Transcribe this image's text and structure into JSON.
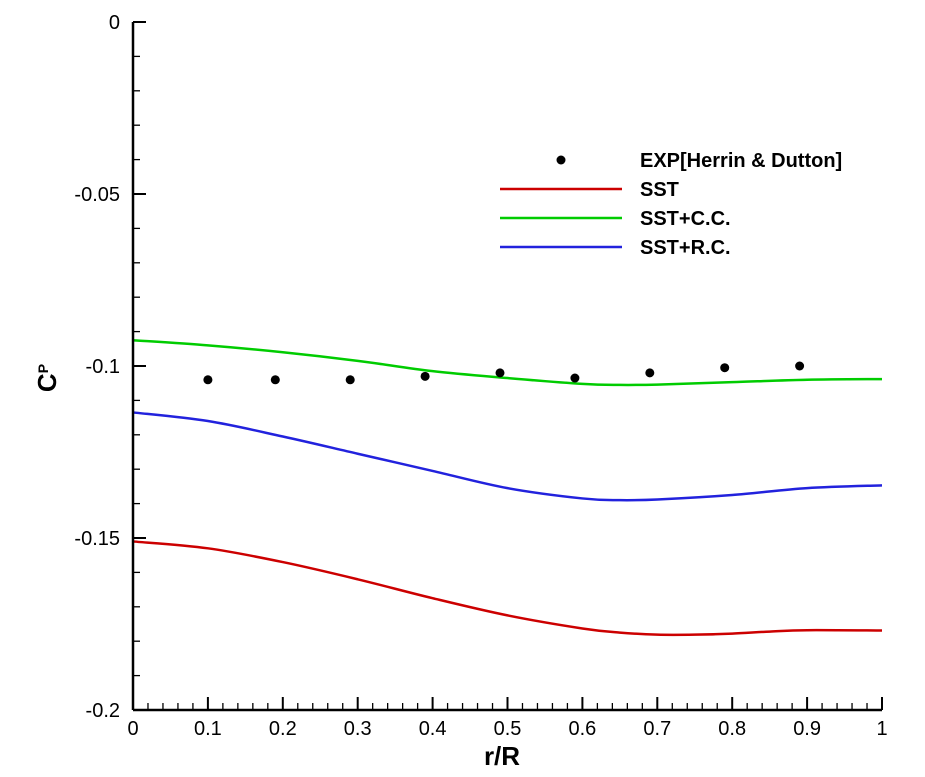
{
  "chart_data": {
    "type": "line",
    "title": "",
    "xlabel": "r/R",
    "ylabel": {
      "main": "C",
      "sub": "P"
    },
    "xlim": [
      0,
      1
    ],
    "ylim": [
      -0.2,
      0
    ],
    "grid": false,
    "legend_position": "top-right",
    "x_ticks": [
      {
        "value": 0,
        "label": "0"
      },
      {
        "value": 0.1,
        "label": "0.1"
      },
      {
        "value": 0.2,
        "label": "0.2"
      },
      {
        "value": 0.3,
        "label": "0.3"
      },
      {
        "value": 0.4,
        "label": "0.4"
      },
      {
        "value": 0.5,
        "label": "0.5"
      },
      {
        "value": 0.6,
        "label": "0.6"
      },
      {
        "value": 0.7,
        "label": "0.7"
      },
      {
        "value": 0.8,
        "label": "0.8"
      },
      {
        "value": 0.9,
        "label": "0.9"
      },
      {
        "value": 1,
        "label": "1"
      }
    ],
    "y_ticks": [
      {
        "value": 0,
        "label": "0"
      },
      {
        "value": -0.05,
        "label": "-0.05"
      },
      {
        "value": -0.1,
        "label": "-0.1"
      },
      {
        "value": -0.15,
        "label": "-0.15"
      },
      {
        "value": -0.2,
        "label": "-0.2"
      }
    ],
    "series": [
      {
        "name": "EXP[Herrin & Dutton]",
        "kind": "scatter",
        "color": "#000000",
        "x": [
          0.1,
          0.19,
          0.29,
          0.39,
          0.49,
          0.59,
          0.69,
          0.79,
          0.89
        ],
        "y": [
          -0.104,
          -0.104,
          -0.104,
          -0.103,
          -0.102,
          -0.1035,
          -0.102,
          -0.1005,
          -0.1
        ]
      },
      {
        "name": "SST",
        "kind": "line",
        "color": "#cc0000",
        "x": [
          0,
          0.1,
          0.2,
          0.3,
          0.4,
          0.5,
          0.6,
          0.65,
          0.7,
          0.75,
          0.8,
          0.85,
          0.9,
          1.0
        ],
        "y": [
          -0.151,
          -0.153,
          -0.157,
          -0.162,
          -0.1675,
          -0.1725,
          -0.1763,
          -0.1775,
          -0.1781,
          -0.1781,
          -0.1778,
          -0.1772,
          -0.1768,
          -0.1769
        ]
      },
      {
        "name": "SST+C.C.",
        "kind": "line",
        "color": "#00cc00",
        "x": [
          0,
          0.1,
          0.2,
          0.3,
          0.4,
          0.5,
          0.6,
          0.65,
          0.7,
          0.8,
          0.9,
          1.0
        ],
        "y": [
          -0.0925,
          -0.094,
          -0.096,
          -0.0985,
          -0.1015,
          -0.1035,
          -0.1052,
          -0.1055,
          -0.1054,
          -0.1047,
          -0.104,
          -0.1038
        ]
      },
      {
        "name": "SST+R.C.",
        "kind": "line",
        "color": "#2222dd",
        "x": [
          0,
          0.1,
          0.2,
          0.3,
          0.4,
          0.5,
          0.6,
          0.65,
          0.7,
          0.8,
          0.9,
          1.0
        ],
        "y": [
          -0.1135,
          -0.116,
          -0.1205,
          -0.1255,
          -0.1305,
          -0.1355,
          -0.1385,
          -0.139,
          -0.1388,
          -0.1375,
          -0.1355,
          -0.1347
        ]
      }
    ]
  }
}
